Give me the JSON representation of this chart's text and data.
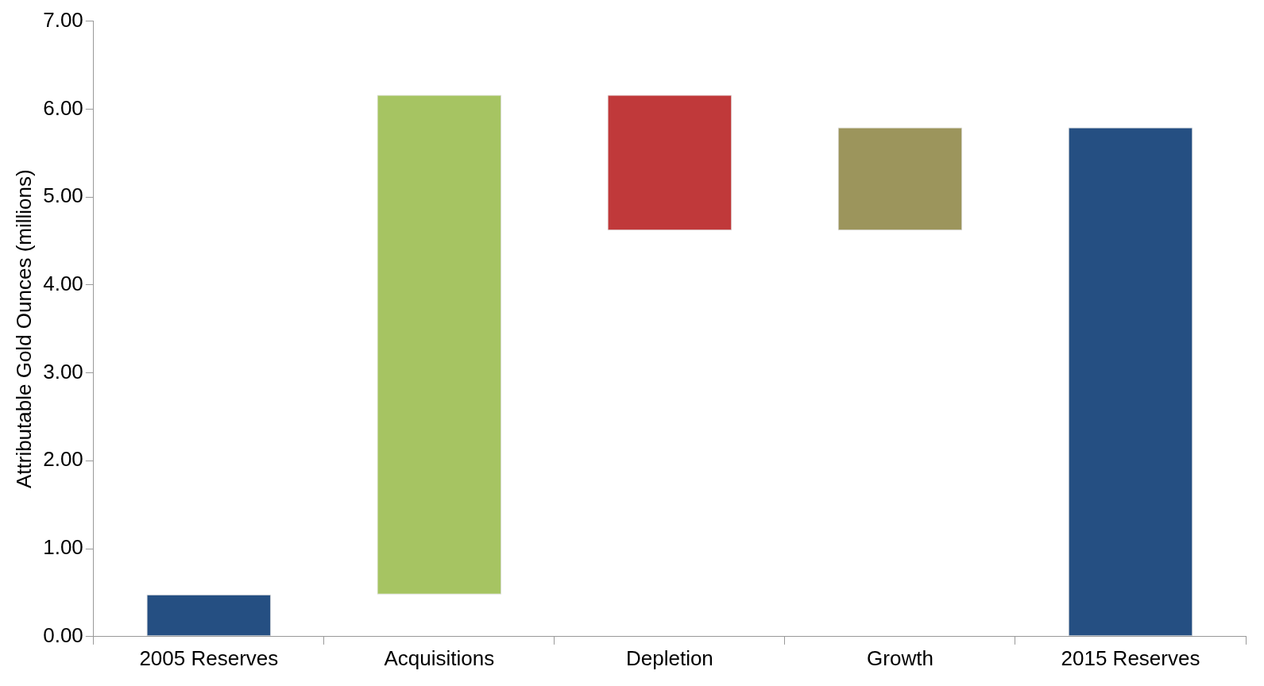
{
  "chart_data": {
    "type": "bar",
    "ylabel": "Attributable Gold Ounces (millions)",
    "categories": [
      "2005 Reserves",
      "Acquisitions",
      "Depletion",
      "Growth",
      "2015 Reserves"
    ],
    "values": [
      0.48,
      5.68,
      -1.54,
      1.17,
      5.79
    ],
    "base": [
      0,
      0.48,
      6.16,
      4.62,
      0
    ],
    "colors": [
      "#254f82",
      "#a6c462",
      "#c0393a",
      "#9c955c",
      "#254f82"
    ],
    "ylim": [
      0,
      7
    ],
    "yticks": [
      {
        "value": 0,
        "label": "0.00"
      },
      {
        "value": 1,
        "label": "1.00"
      },
      {
        "value": 2,
        "label": "2.00"
      },
      {
        "value": 3,
        "label": "3.00"
      },
      {
        "value": 4,
        "label": "4.00"
      },
      {
        "value": 5,
        "label": "5.00"
      },
      {
        "value": 6,
        "label": "6.00"
      },
      {
        "value": 7,
        "label": "7.00"
      }
    ]
  }
}
